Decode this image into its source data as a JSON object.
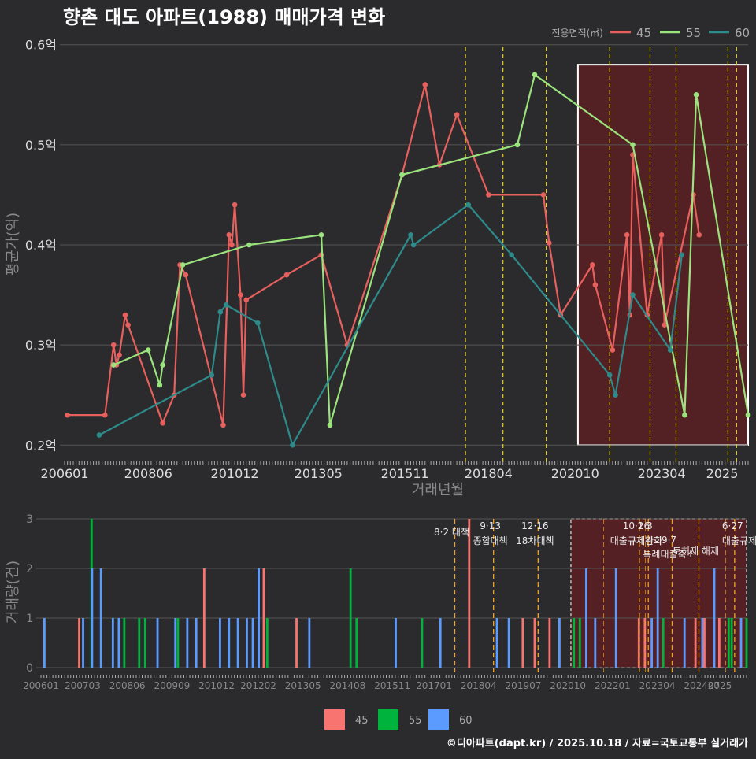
{
  "title": "향촌 대도 아파트(1988) 매매가격 변화",
  "caption": "©디아파트(dapt.kr) / 2025.10.18 / 자료=국토교통부 실거래가",
  "colors": {
    "background": "#2b2b2d",
    "grid": "#555555",
    "s45": "#e8605d",
    "s55": "#9be37c",
    "s60": "#2e8b8b",
    "bar45": "#f87470",
    "bar55": "#00b33c",
    "bar60": "#5b9bff",
    "policy": "#e6d21a",
    "highlight": "#5a1f22"
  },
  "chart_data": [
    {
      "type": "line",
      "title": "향촌 대도 아파트(1988) 매매가격 변화",
      "xlabel": "거래년월",
      "ylabel": "평균가(억)",
      "ylim": [
        0.19,
        0.61
      ],
      "xlim": [
        "2006-01",
        "2025-10"
      ],
      "x_ticks": [
        "200601",
        "200806",
        "201012",
        "201305",
        "201511",
        "201804",
        "202010",
        "202304",
        "2025"
      ],
      "y_ticks": [
        "0.2억",
        "0.3억",
        "0.4억",
        "0.5억",
        "0.6억"
      ],
      "y_tick_values": [
        0.2,
        0.3,
        0.4,
        0.5,
        0.6
      ],
      "legend_title": "전용면적(㎡)",
      "legend_position": "top-right",
      "series": [
        {
          "name": "45",
          "points": [
            [
              "2006-02",
              0.23
            ],
            [
              "2007-03",
              0.23
            ],
            [
              "2007-06",
              0.3
            ],
            [
              "2007-07",
              0.28
            ],
            [
              "2007-08",
              0.29
            ],
            [
              "2007-10",
              0.33
            ],
            [
              "2007-11",
              0.32
            ],
            [
              "2008-11",
              0.222
            ],
            [
              "2009-03",
              0.25
            ],
            [
              "2009-05",
              0.38
            ],
            [
              "2009-07",
              0.37
            ],
            [
              "2010-08",
              0.22
            ],
            [
              "2010-10",
              0.41
            ],
            [
              "2010-11",
              0.4
            ],
            [
              "2010-12",
              0.44
            ],
            [
              "2011-02",
              0.35
            ],
            [
              "2011-03",
              0.25
            ],
            [
              "2011-04",
              0.345
            ],
            [
              "2012-06",
              0.37
            ],
            [
              "2013-06",
              0.39
            ],
            [
              "2014-03",
              0.3
            ],
            [
              "2015-10",
              0.47
            ],
            [
              "2016-06",
              0.56
            ],
            [
              "2016-11",
              0.48
            ],
            [
              "2017-05",
              0.53
            ],
            [
              "2018-04",
              0.45
            ],
            [
              "2019-11",
              0.45
            ],
            [
              "2020-01",
              0.402
            ],
            [
              "2020-05",
              0.33
            ],
            [
              "2021-04",
              0.38
            ],
            [
              "2021-05",
              0.36
            ],
            [
              "2021-11",
              0.295
            ],
            [
              "2022-04",
              0.41
            ],
            [
              "2022-05",
              0.33
            ],
            [
              "2022-06",
              0.49
            ],
            [
              "2022-11",
              0.33
            ],
            [
              "2023-04",
              0.41
            ],
            [
              "2023-05",
              0.32
            ],
            [
              "2024-03",
              0.45
            ],
            [
              "2024-05",
              0.41
            ]
          ]
        },
        {
          "name": "55",
          "points": [
            [
              "2007-06",
              0.28
            ],
            [
              "2008-06",
              0.295
            ],
            [
              "2008-10",
              0.26
            ],
            [
              "2008-11",
              0.28
            ],
            [
              "2009-06",
              0.38
            ],
            [
              "2011-05",
              0.4
            ],
            [
              "2013-06",
              0.41
            ],
            [
              "2013-09",
              0.22
            ],
            [
              "2015-10",
              0.47
            ],
            [
              "2019-02",
              0.5
            ],
            [
              "2019-08",
              0.57
            ],
            [
              "2022-06",
              0.5
            ],
            [
              "2023-12",
              0.23
            ],
            [
              "2024-04",
              0.55
            ],
            [
              "2025-10",
              0.23
            ]
          ]
        },
        {
          "name": "60",
          "points": [
            [
              "2007-01",
              0.21
            ],
            [
              "2010-04",
              0.27
            ],
            [
              "2010-07",
              0.333
            ],
            [
              "2010-09",
              0.34
            ],
            [
              "2011-08",
              0.322
            ],
            [
              "2012-08",
              0.2
            ],
            [
              "2016-01",
              0.41
            ],
            [
              "2016-02",
              0.4
            ],
            [
              "2017-09",
              0.44
            ],
            [
              "2018-12",
              0.39
            ],
            [
              "2021-10",
              0.27
            ],
            [
              "2021-12",
              0.25
            ],
            [
              "2022-06",
              0.35
            ],
            [
              "2023-07",
              0.295
            ],
            [
              "2023-11",
              0.39
            ]
          ]
        }
      ],
      "policy_dates": [
        "2017-08",
        "2018-09",
        "2019-12",
        "2021-10",
        "2022-12",
        "2023-09",
        "2025-03",
        "2025-06"
      ],
      "highlight_range": [
        "2020-11",
        "2025-10"
      ]
    },
    {
      "type": "bar",
      "ylabel": "거래량(건)",
      "ylim": [
        0,
        3
      ],
      "y_ticks": [
        "0",
        "1",
        "2",
        "3"
      ],
      "x_ticks": [
        "200601",
        "200703",
        "200806",
        "200909",
        "201012",
        "201202",
        "201305",
        "201408",
        "201511",
        "201701",
        "201804",
        "201907",
        "202010",
        "202201",
        "202304",
        "202407",
        "2025"
      ],
      "series_names": [
        "45",
        "55",
        "60"
      ],
      "bars": [
        {
          "date": "2006-02",
          "size": "60",
          "count": 1
        },
        {
          "date": "2007-02",
          "size": "45",
          "count": 1
        },
        {
          "date": "2007-03",
          "size": "60",
          "count": 1
        },
        {
          "date": "2007-06",
          "size": "55",
          "count": 3
        },
        {
          "date": "2007-06",
          "size": "60",
          "count": 2
        },
        {
          "date": "2007-09",
          "size": "60",
          "count": 2
        },
        {
          "date": "2008-01",
          "size": "60",
          "count": 1
        },
        {
          "date": "2008-03",
          "size": "60",
          "count": 1
        },
        {
          "date": "2008-05",
          "size": "55",
          "count": 1
        },
        {
          "date": "2008-10",
          "size": "55",
          "count": 1
        },
        {
          "date": "2008-12",
          "size": "55",
          "count": 1
        },
        {
          "date": "2009-04",
          "size": "60",
          "count": 1
        },
        {
          "date": "2009-10",
          "size": "60",
          "count": 1
        },
        {
          "date": "2009-11",
          "size": "55",
          "count": 1
        },
        {
          "date": "2010-02",
          "size": "60",
          "count": 1
        },
        {
          "date": "2010-05",
          "size": "60",
          "count": 1
        },
        {
          "date": "2010-08",
          "size": "45",
          "count": 2
        },
        {
          "date": "2011-01",
          "size": "60",
          "count": 1
        },
        {
          "date": "2011-04",
          "size": "60",
          "count": 1
        },
        {
          "date": "2011-07",
          "size": "60",
          "count": 1
        },
        {
          "date": "2011-10",
          "size": "60",
          "count": 1
        },
        {
          "date": "2011-12",
          "size": "60",
          "count": 1
        },
        {
          "date": "2012-02",
          "size": "60",
          "count": 2
        },
        {
          "date": "2012-04",
          "size": "45",
          "count": 2
        },
        {
          "date": "2012-05",
          "size": "55",
          "count": 1
        },
        {
          "date": "2013-03",
          "size": "45",
          "count": 1
        },
        {
          "date": "2013-07",
          "size": "60",
          "count": 1
        },
        {
          "date": "2014-09",
          "size": "55",
          "count": 2
        },
        {
          "date": "2014-11",
          "size": "55",
          "count": 1
        },
        {
          "date": "2015-12",
          "size": "60",
          "count": 1
        },
        {
          "date": "2016-09",
          "size": "55",
          "count": 1
        },
        {
          "date": "2017-03",
          "size": "60",
          "count": 1
        },
        {
          "date": "2018-01",
          "size": "45",
          "count": 3
        },
        {
          "date": "2018-10",
          "size": "60",
          "count": 1
        },
        {
          "date": "2019-02",
          "size": "60",
          "count": 1
        },
        {
          "date": "2019-07",
          "size": "45",
          "count": 1
        },
        {
          "date": "2019-11",
          "size": "45",
          "count": 1
        },
        {
          "date": "2020-04",
          "size": "45",
          "count": 1
        },
        {
          "date": "2020-07",
          "size": "60",
          "count": 1
        },
        {
          "date": "2020-12",
          "size": "55",
          "count": 1
        },
        {
          "date": "2021-02",
          "size": "55",
          "count": 1
        },
        {
          "date": "2021-04",
          "size": "60",
          "count": 2
        },
        {
          "date": "2021-07",
          "size": "60",
          "count": 1
        },
        {
          "date": "2022-02",
          "size": "60",
          "count": 2
        },
        {
          "date": "2022-10",
          "size": "45",
          "count": 1
        },
        {
          "date": "2022-12",
          "size": "45",
          "count": 1
        },
        {
          "date": "2023-02",
          "size": "60",
          "count": 1
        },
        {
          "date": "2023-04",
          "size": "60",
          "count": 2
        },
        {
          "date": "2023-06",
          "size": "55",
          "count": 1
        },
        {
          "date": "2024-01",
          "size": "60",
          "count": 1
        },
        {
          "date": "2024-05",
          "size": "45",
          "count": 1
        },
        {
          "date": "2024-07",
          "size": "60",
          "count": 1
        },
        {
          "date": "2024-08",
          "size": "45",
          "count": 1
        },
        {
          "date": "2024-11",
          "size": "60",
          "count": 2
        },
        {
          "date": "2025-01",
          "size": "45",
          "count": 1
        },
        {
          "date": "2025-04",
          "size": "55",
          "count": 1
        },
        {
          "date": "2025-05",
          "size": "55",
          "count": 1
        },
        {
          "date": "2025-08",
          "size": "60",
          "count": 1
        },
        {
          "date": "2025-10",
          "size": "55",
          "count": 1
        }
      ],
      "policy_labels": [
        {
          "date": "2017-08",
          "lines": [
            "8·2 대책"
          ]
        },
        {
          "date": "2018-09",
          "lines": [
            "9·13",
            "종합대책"
          ]
        },
        {
          "date": "2019-12",
          "lines": [
            "12·16",
            "18차대책"
          ]
        },
        {
          "date": "2022-10",
          "lines": [
            "10·26",
            "대출규제강화"
          ]
        },
        {
          "date": "2023-01",
          "lines": [
            "1·3",
            "규제완화"
          ]
        },
        {
          "date": "2023-09",
          "lines": [
            "9·7",
            "특례대출축소"
          ]
        },
        {
          "date": "2024-06",
          "lines": [
            "토허제 해제"
          ]
        },
        {
          "date": "2025-06",
          "lines": [
            "6·27",
            "대출규제"
          ]
        }
      ]
    }
  ]
}
